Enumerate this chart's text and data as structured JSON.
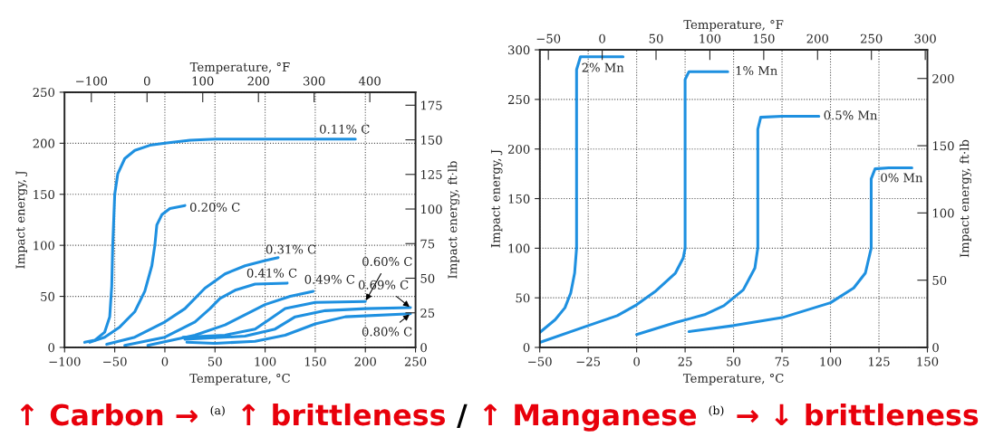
{
  "chart_data": [
    {
      "type": "line",
      "xlabel": "Temperature, °C",
      "ylabel": "Impact energy, J",
      "x2label": "Temperature, °F",
      "y2label": "Impact energy, ft·lb",
      "xlim": [
        -100,
        250
      ],
      "xticks": [
        -100,
        -50,
        0,
        50,
        100,
        150,
        200,
        250
      ],
      "ylim": [
        0,
        250
      ],
      "yticks": [
        0,
        50,
        100,
        150,
        200,
        250
      ],
      "x2lim": [
        -148,
        482
      ],
      "x2ticks": [
        -100,
        0,
        100,
        200,
        300,
        400
      ],
      "y2lim": [
        0,
        184.4
      ],
      "y2ticks": [
        0,
        25,
        50,
        75,
        100,
        125,
        150,
        175
      ],
      "grid": true,
      "legend": false,
      "marker": "none",
      "line_style": "solid",
      "annotations": [
        "↑ Carbon →",
        "(a)",
        "↑ brittleness",
        "/"
      ],
      "series": [
        {
          "name": "0.11% C",
          "color": "#1e90e0",
          "x": [
            -80,
            -70,
            -60,
            -55,
            -53,
            -52,
            -50,
            -47,
            -40,
            -30,
            -15,
            0,
            25,
            50,
            100,
            150,
            190
          ],
          "values": [
            5,
            7,
            15,
            30,
            60,
            100,
            150,
            170,
            185,
            193,
            198,
            200,
            203,
            204,
            204,
            204,
            204
          ]
        },
        {
          "name": "0.20% C",
          "color": "#1e90e0",
          "x": [
            -75,
            -60,
            -45,
            -30,
            -20,
            -13,
            -10,
            -8,
            -3,
            5,
            20
          ],
          "values": [
            5,
            10,
            20,
            35,
            55,
            80,
            100,
            120,
            130,
            136,
            139
          ]
        },
        {
          "name": "0.31% C",
          "color": "#1e90e0",
          "x": [
            -58,
            -30,
            0,
            20,
            40,
            60,
            80,
            100,
            113
          ],
          "values": [
            3,
            10,
            25,
            38,
            58,
            72,
            80,
            85,
            88
          ]
        },
        {
          "name": "0.41% C",
          "color": "#1e90e0",
          "x": [
            -40,
            0,
            30,
            45,
            55,
            70,
            90,
            122
          ],
          "values": [
            2,
            10,
            25,
            38,
            48,
            56,
            62,
            63
          ]
        },
        {
          "name": "0.49% C",
          "color": "#1e90e0",
          "x": [
            -17,
            30,
            60,
            80,
            100,
            125,
            148
          ],
          "values": [
            2,
            12,
            22,
            32,
            42,
            50,
            55
          ]
        },
        {
          "name": "0.60% C",
          "color": "#1e90e0",
          "x": [
            18,
            60,
            90,
            105,
            120,
            150,
            200
          ],
          "values": [
            10,
            12,
            18,
            28,
            38,
            44,
            45
          ]
        },
        {
          "name": "0.69% C",
          "color": "#1e90e0",
          "x": [
            20,
            80,
            110,
            130,
            160,
            200,
            245
          ],
          "values": [
            8,
            11,
            18,
            30,
            36,
            38,
            39
          ]
        },
        {
          "name": "0.80% C",
          "color": "#1e90e0",
          "x": [
            22,
            50,
            90,
            120,
            150,
            180,
            245
          ],
          "values": [
            5,
            4,
            6,
            12,
            23,
            30,
            33
          ]
        }
      ]
    },
    {
      "type": "line",
      "xlabel": "Temperature, °C",
      "ylabel": "Impact energy, J",
      "x2label": "Temperature, °F",
      "y2label": "Impact energy, ft·lb",
      "xlim": [
        -50,
        150
      ],
      "xticks": [
        -50,
        -25,
        0,
        25,
        50,
        75,
        100,
        125,
        150
      ],
      "ylim": [
        0,
        300
      ],
      "yticks": [
        0,
        50,
        100,
        150,
        200,
        250,
        300
      ],
      "x2lim": [
        -58,
        302
      ],
      "x2ticks": [
        -50,
        0,
        50,
        100,
        150,
        200,
        250,
        300
      ],
      "y2lim": [
        0,
        221.3
      ],
      "y2ticks": [
        0,
        50,
        100,
        150,
        200
      ],
      "grid": true,
      "legend": false,
      "marker": "none",
      "line_style": "solid",
      "annotations": [
        "↑ Manganese",
        "(b)",
        "→ ↓ brittleness"
      ],
      "series": [
        {
          "name": "2% Mn",
          "color": "#1e90e0",
          "x": [
            -50,
            -42,
            -37,
            -34,
            -32,
            -31,
            -31,
            -31,
            -29,
            -20,
            -7
          ],
          "values": [
            15,
            28,
            40,
            55,
            75,
            100,
            200,
            280,
            293,
            293,
            293
          ]
        },
        {
          "name": "1% Mn",
          "color": "#1e90e0",
          "x": [
            -50,
            -25,
            -10,
            0,
            10,
            20,
            24,
            25,
            25,
            25,
            27,
            35,
            47
          ],
          "values": [
            5,
            22,
            32,
            43,
            57,
            75,
            90,
            100,
            200,
            270,
            278,
            278,
            278
          ]
        },
        {
          "name": "0.5% Mn",
          "color": "#1e90e0",
          "x": [
            0,
            20,
            35,
            45,
            55,
            61,
            62.5,
            62.5,
            64,
            75,
            94
          ],
          "values": [
            13,
            25,
            33,
            42,
            58,
            80,
            100,
            220,
            232,
            233,
            233
          ]
        },
        {
          "name": "0% Mn",
          "color": "#1e90e0",
          "x": [
            27,
            50,
            75,
            100,
            112,
            118,
            121,
            121,
            123,
            130,
            142
          ],
          "values": [
            16,
            22,
            30,
            45,
            60,
            75,
            100,
            170,
            180,
            181,
            181
          ]
        }
      ]
    }
  ]
}
